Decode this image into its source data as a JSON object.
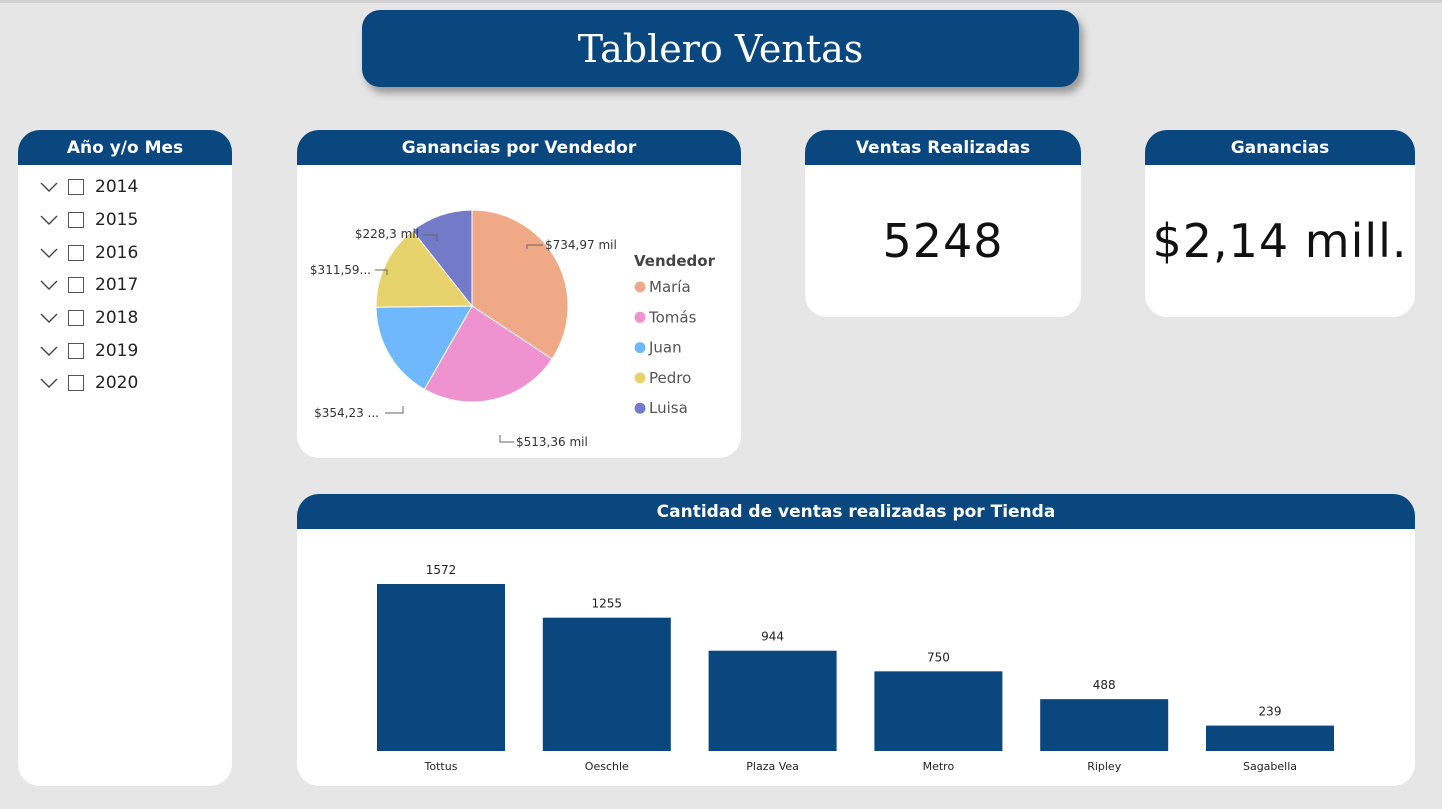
{
  "title": "Tablero Ventas",
  "slicer": {
    "header": "Año y/o Mes",
    "years": [
      "2014",
      "2015",
      "2016",
      "2017",
      "2018",
      "2019",
      "2020"
    ]
  },
  "pie": {
    "header": "Ganancias por Vendedor",
    "legend_title": "Vendedor",
    "slices": [
      {
        "name": "María",
        "label": "$734,97 mil",
        "value": 734.97,
        "color": "#f0a987"
      },
      {
        "name": "Tomás",
        "label": "$513,36 mil",
        "value": 513.36,
        "color": "#ee92d0"
      },
      {
        "name": "Juan",
        "label": "$354,23 ...",
        "value": 354.23,
        "color": "#6fb8fb"
      },
      {
        "name": "Pedro",
        "label": "$311,59...",
        "value": 311.59,
        "color": "#e7d36b"
      },
      {
        "name": "Luisa",
        "label": "$228,3 mil",
        "value": 228.3,
        "color": "#737bc8"
      }
    ]
  },
  "kpi_sales": {
    "header": "Ventas Realizadas",
    "value": "5248"
  },
  "kpi_profit": {
    "header": "Ganancias",
    "value": "$2,14 mill."
  },
  "bars_header": "Cantidad de ventas realizadas por Tienda",
  "chart_data": {
    "type": "bar",
    "title": "Cantidad de ventas realizadas por Tienda",
    "categories": [
      "Tottus",
      "Oeschle",
      "Plaza Vea",
      "Metro",
      "Ripley",
      "Sagabella"
    ],
    "values": [
      1572,
      1255,
      944,
      750,
      488,
      239
    ],
    "color": "#0a477f",
    "xlabel": "",
    "ylabel": "",
    "ylim": [
      0,
      1572
    ]
  }
}
